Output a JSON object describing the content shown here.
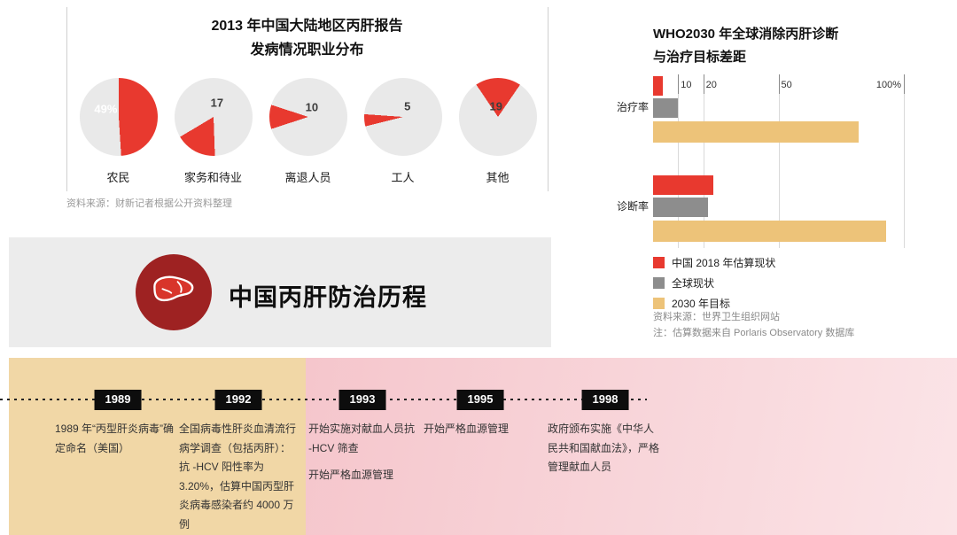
{
  "pie_section": {
    "title_line1": "2013 年中国大陆地区丙肝报告",
    "title_line2": "发病情况职业分布",
    "source": "资料来源：财新记者根据公开资料整理"
  },
  "bar_section": {
    "title_line1": "WHO2030 年全球消除丙肝诊断",
    "title_line2": "与治疗目标差距",
    "source": "资料来源：世界卫生组织网站",
    "note": "注：估算数据来自 Porlaris Observatory 数据库"
  },
  "banner": {
    "title": "中国丙肝防治历程",
    "circle_color": "#9e2222"
  },
  "chart_data": [
    {
      "type": "pie",
      "title": "2013 年中国大陆地区丙肝报告发病情况职业分布",
      "unit": "%",
      "colors": {
        "slice": "#e8392f",
        "rest": "#e9e9e9"
      },
      "slices": [
        {
          "label": "农民",
          "value": 49,
          "display": "49%",
          "start_deg": 0,
          "value_color": "#ffffff",
          "value_x": "34%",
          "value_y": "40%"
        },
        {
          "label": "家务和待业",
          "value": 17,
          "display": "17",
          "start_deg": 178,
          "value_color": "#3d3d3d",
          "value_x": "55%",
          "value_y": "32%"
        },
        {
          "label": "离退人员",
          "value": 10,
          "display": "10",
          "start_deg": 252,
          "value_color": "#3d3d3d",
          "value_x": "55%",
          "value_y": "38%"
        },
        {
          "label": "工人",
          "value": 5,
          "display": "5",
          "start_deg": 256,
          "value_color": "#3d3d3d",
          "value_x": "56%",
          "value_y": "36%"
        },
        {
          "label": "其他",
          "value": 19,
          "display": "19",
          "start_deg": -34,
          "value_color": "#3d3d3d",
          "value_x": "48%",
          "value_y": "36%"
        }
      ]
    },
    {
      "type": "bar",
      "title": "WHO2030 年全球消除丙肝诊断与治疗目标差距",
      "orientation": "horizontal",
      "xlim": [
        0,
        100
      ],
      "grid": true,
      "legend_position": "bottom-left",
      "ticks": [
        {
          "value": 10,
          "label": "10"
        },
        {
          "value": 20,
          "label": "20"
        },
        {
          "value": 50,
          "label": "50"
        },
        {
          "value": 100,
          "label": "100%"
        }
      ],
      "categories": [
        "治疗率",
        "诊断率"
      ],
      "series": [
        {
          "name": "中国 2018 年估算现状",
          "color": "#e8392f",
          "values": [
            4,
            24
          ]
        },
        {
          "name": "全球现状",
          "color": "#8d8d8d",
          "values": [
            10,
            22
          ]
        },
        {
          "name": "2030 年目标",
          "color": "#edc379",
          "values": [
            82,
            93
          ]
        }
      ]
    }
  ],
  "timeline": {
    "events": [
      {
        "year": "1989",
        "paragraphs": [
          "1989 年“丙型肝炎病毒”确定命名（美国）"
        ]
      },
      {
        "year": "1992",
        "paragraphs": [
          "全国病毒性肝炎血清流行病学调查（包括丙肝）：抗 -HCV 阳性率为 3.20%，估算中国丙型肝炎病毒感染者约 4000 万例"
        ]
      },
      {
        "year": "1993",
        "paragraphs": [
          "开始实施对献血人员抗 -HCV 筛查",
          "开始严格血源管理"
        ]
      },
      {
        "year": "1995",
        "paragraphs": [
          "开始严格血源管理"
        ]
      },
      {
        "year": "1998",
        "paragraphs": [
          "政府颁布实施《中华人民共和国献血法》，严格管理献血人员"
        ]
      }
    ]
  }
}
